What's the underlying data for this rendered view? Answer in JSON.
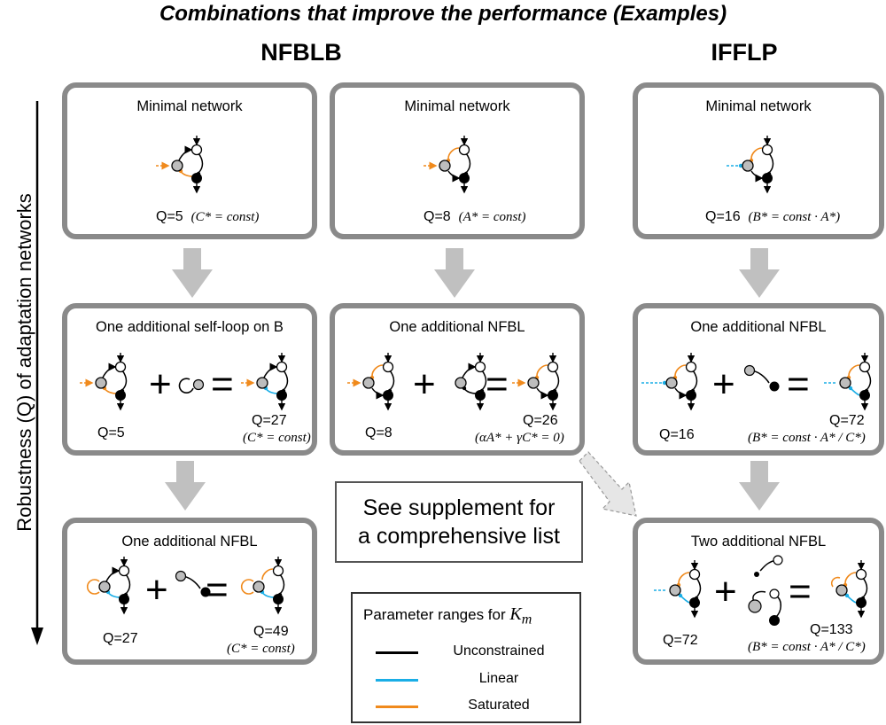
{
  "title": "Combinations that improve the performance (Examples)",
  "columns": {
    "left": "NFBLB",
    "right": "IFFLP"
  },
  "y_axis_label": "Robustness (Q) of adaptation networks",
  "colors": {
    "unconstrained": "#000000",
    "linear": "#1aaee6",
    "saturated": "#f08a1c",
    "panel_border": "#8a8a8a",
    "arrow_fill": "#c0c0c0"
  },
  "panels": {
    "nfblb_min": {
      "title": "Minimal network",
      "q": "Q=5",
      "formula": "(C* = const)"
    },
    "mid_min": {
      "title": "Minimal network",
      "q": "Q=8",
      "formula": "(A* = const)"
    },
    "ifflp_min": {
      "title": "Minimal network",
      "q": "Q=16",
      "formula": "(B* = const · A*)"
    },
    "nfblb_self": {
      "title": "One additional self-loop on B",
      "q_left": "Q=5",
      "q_right": "Q=27",
      "formula": "(C* = const)",
      "plus": "+",
      "equals": "="
    },
    "mid_nfbl": {
      "title": "One additional NFBL",
      "q_left": "Q=8",
      "q_right": "Q=26",
      "formula": "(αA* + γC* = 0)",
      "plus": "+",
      "equals": "="
    },
    "ifflp_nfbl": {
      "title": "One additional NFBL",
      "q_left": "Q=16",
      "q_right": "Q=72",
      "formula": "(B* = const · A* / C*)",
      "plus": "+",
      "equals": "="
    },
    "nfblb_nfbl": {
      "title": "One additional NFBL",
      "q_left": "Q=27",
      "q_right": "Q=49",
      "formula": "(C* = const)",
      "plus": "+",
      "equals": "="
    },
    "ifflp_two": {
      "title": "Two additional NFBL",
      "q_left": "Q=72",
      "q_right": "Q=133",
      "formula": "(B* = const · A* / C*)",
      "plus": "+",
      "equals": "="
    }
  },
  "supplement": {
    "line1": "See supplement for",
    "line2": "a comprehensive list"
  },
  "legend": {
    "title": "Parameter ranges for ",
    "symbol": "K",
    "subscript": "m",
    "items": [
      {
        "label": "Unconstrained",
        "color": "#000000"
      },
      {
        "label": "Linear",
        "color": "#1aaee6"
      },
      {
        "label": "Saturated",
        "color": "#f08a1c"
      }
    ]
  }
}
